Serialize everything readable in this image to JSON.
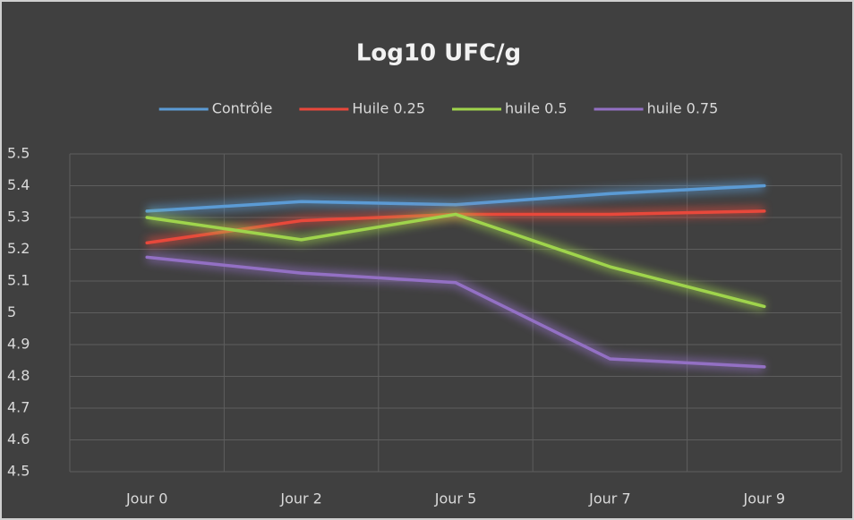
{
  "chart_data": {
    "type": "line",
    "title": "Log10 UFC/g",
    "categories": [
      "Jour 0",
      "Jour 2",
      "Jour 5",
      "Jour 7",
      "Jour 9"
    ],
    "series": [
      {
        "name": "Contrôle",
        "color": "#5b9bd5",
        "values": [
          5.32,
          5.35,
          5.34,
          5.375,
          5.4
        ]
      },
      {
        "name": "Huile 0.25",
        "color": "#e8483b",
        "values": [
          5.22,
          5.29,
          5.31,
          5.31,
          5.32
        ]
      },
      {
        "name": "huile 0.5",
        "color": "#9fd44c",
        "values": [
          5.3,
          5.23,
          5.31,
          5.145,
          5.02
        ]
      },
      {
        "name": "huile 0.75",
        "color": "#9370c4",
        "values": [
          5.175,
          5.125,
          5.095,
          4.855,
          4.83
        ]
      }
    ],
    "ylim": [
      4.5,
      5.5
    ],
    "yticks": [
      4.5,
      4.6,
      4.7,
      4.8,
      4.9,
      5,
      5.1,
      5.2,
      5.3,
      5.4,
      5.5
    ],
    "grid": true,
    "legend": "top"
  }
}
